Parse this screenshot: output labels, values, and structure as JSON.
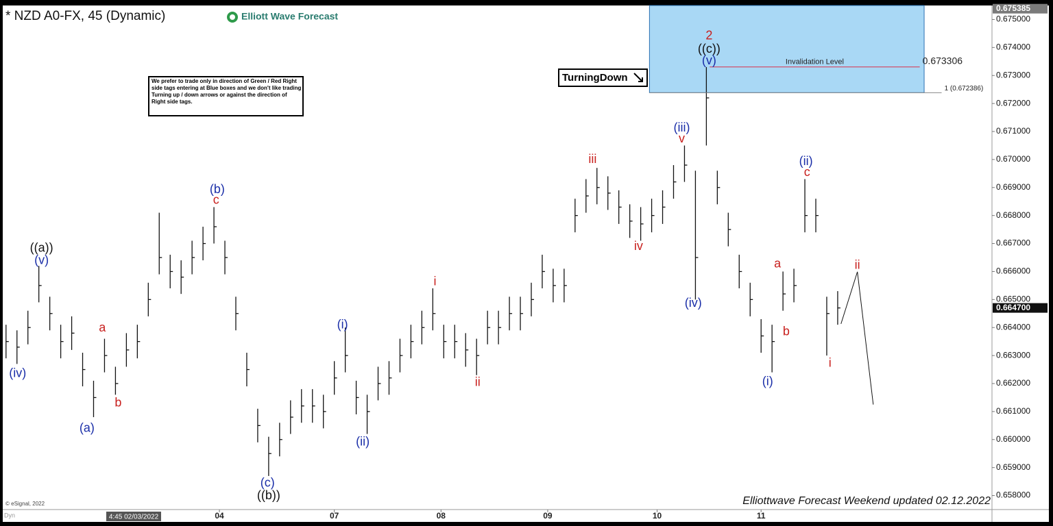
{
  "chart_data": {
    "type": "ohlc",
    "title": "* NZD A0-FX, 45 (Dynamic)",
    "logo": "Elliott Wave Forecast",
    "footer": "Elliottwave Forecast Weekend updated 02.12.2022",
    "copyright": "© eSignal, 2022",
    "corner_label": "Dyn",
    "cursor_label": "4:45 02/03/2022",
    "note": "We prefer to trade only in direction of Green / Red Right side tags entering at Blue boxes and we don't like trading Turning up / down arrows or against the direction of Right side tags.",
    "signal": "TurningDown",
    "color": "#111111",
    "xlim": [
      -0.3,
      90.1
    ],
    "ylim": [
      0.6575,
      0.6755
    ],
    "xticks": [
      {
        "value": 19.5,
        "label": "04"
      },
      {
        "value": 30,
        "label": "07"
      },
      {
        "value": 39.75,
        "label": "08"
      },
      {
        "value": 49.5,
        "label": "09"
      },
      {
        "value": 59.5,
        "label": "10"
      },
      {
        "value": 69,
        "label": "11"
      }
    ],
    "yticks": [
      {
        "value": 0.658,
        "label": "0.658000"
      },
      {
        "value": 0.659,
        "label": "0.659000"
      },
      {
        "value": 0.66,
        "label": "0.660000"
      },
      {
        "value": 0.661,
        "label": "0.661000"
      },
      {
        "value": 0.662,
        "label": "0.662000"
      },
      {
        "value": 0.663,
        "label": "0.663000"
      },
      {
        "value": 0.664,
        "label": "0.664000"
      },
      {
        "value": 0.665,
        "label": "0.665000"
      },
      {
        "value": 0.666,
        "label": "0.666000"
      },
      {
        "value": 0.667,
        "label": "0.667000"
      },
      {
        "value": 0.668,
        "label": "0.668000"
      },
      {
        "value": 0.669,
        "label": "0.669000"
      },
      {
        "value": 0.67,
        "label": "0.670000"
      },
      {
        "value": 0.671,
        "label": "0.671000"
      },
      {
        "value": 0.672,
        "label": "0.672000"
      },
      {
        "value": 0.673,
        "label": "0.673000"
      },
      {
        "value": 0.674,
        "label": "0.674000"
      },
      {
        "value": 0.675,
        "label": "0.675000"
      }
    ],
    "high": [
      0.6641,
      0.6639,
      0.6646,
      0.6662,
      0.6651,
      0.6641,
      0.6644,
      0.6631,
      0.6621,
      0.6636,
      0.6626,
      0.6638,
      0.6641,
      0.6656,
      0.6681,
      0.6666,
      0.6664,
      0.6671,
      0.6676,
      0.6683,
      0.6671,
      0.6651,
      0.6631,
      0.6611,
      0.6601,
      0.6606,
      0.6614,
      0.6618,
      0.6618,
      0.6616,
      0.6628,
      0.664,
      0.6621,
      0.6616,
      0.6626,
      0.6628,
      0.6636,
      0.6641,
      0.6646,
      0.6654,
      0.6641,
      0.6641,
      0.6638,
      0.6636,
      0.6646,
      0.6646,
      0.6651,
      0.6651,
      0.6656,
      0.6666,
      0.6661,
      0.6661,
      0.6686,
      0.6693,
      0.6697,
      0.6694,
      0.6689,
      0.6684,
      0.6683,
      0.6686,
      0.6689,
      0.6698,
      0.6705,
      0.6696,
      0.6733,
      0.6696,
      0.6681,
      0.6666,
      0.6656,
      0.6643,
      0.6641,
      0.666,
      0.6661,
      0.6693,
      0.6686,
      0.6651,
      0.6653
    ],
    "low": [
      0.6629,
      0.6627,
      0.6634,
      0.6649,
      0.6639,
      0.6629,
      0.6632,
      0.6619,
      0.6608,
      0.6624,
      0.6616,
      0.6626,
      0.6629,
      0.6644,
      0.6659,
      0.6654,
      0.6652,
      0.6659,
      0.6664,
      0.667,
      0.6659,
      0.6639,
      0.6619,
      0.6599,
      0.6587,
      0.6594,
      0.6602,
      0.6606,
      0.6606,
      0.6604,
      0.6616,
      0.6624,
      0.6609,
      0.6602,
      0.6614,
      0.6616,
      0.6624,
      0.6629,
      0.6634,
      0.6639,
      0.6629,
      0.6629,
      0.6626,
      0.6623,
      0.6634,
      0.6634,
      0.6639,
      0.6639,
      0.6644,
      0.6654,
      0.6649,
      0.6649,
      0.6674,
      0.6681,
      0.6684,
      0.6682,
      0.6677,
      0.6672,
      0.6671,
      0.6674,
      0.6677,
      0.6686,
      0.6692,
      0.665,
      0.6705,
      0.6684,
      0.6669,
      0.6654,
      0.6644,
      0.6631,
      0.6624,
      0.6646,
      0.6649,
      0.6674,
      0.6674,
      0.663,
      0.6641
    ],
    "close": [
      0.6635,
      0.6633,
      0.664,
      0.6655,
      0.6645,
      0.6635,
      0.6638,
      0.6625,
      0.6615,
      0.663,
      0.662,
      0.6632,
      0.6635,
      0.665,
      0.6665,
      0.666,
      0.6658,
      0.6665,
      0.667,
      0.6676,
      0.6665,
      0.6645,
      0.6625,
      0.6605,
      0.6595,
      0.66,
      0.6608,
      0.6612,
      0.6612,
      0.661,
      0.6622,
      0.663,
      0.6615,
      0.661,
      0.662,
      0.6622,
      0.663,
      0.6635,
      0.664,
      0.6645,
      0.6635,
      0.6635,
      0.6632,
      0.663,
      0.664,
      0.664,
      0.6645,
      0.6645,
      0.665,
      0.666,
      0.6655,
      0.6655,
      0.668,
      0.6687,
      0.669,
      0.6688,
      0.6683,
      0.6678,
      0.6677,
      0.668,
      0.6683,
      0.6692,
      0.6698,
      0.6665,
      0.6722,
      0.669,
      0.6675,
      0.666,
      0.665,
      0.6637,
      0.6635,
      0.6652,
      0.6655,
      0.668,
      0.668,
      0.6645,
      0.6647
    ],
    "blue_box": {
      "x": [
        58.8,
        83.9
      ],
      "y": [
        0.672386,
        0.6755
      ],
      "color": "#a9d8f5"
    },
    "levels": [
      {
        "name": "Invalidation Level",
        "value": 0.673306,
        "label": "0.673306",
        "color": "#d9314a",
        "x": [
          64.3,
          83.5
        ]
      },
      {
        "value": 0.672386,
        "label": "1 (0.672386)",
        "color": "#888888",
        "x": [
          58.8,
          85.5
        ]
      }
    ],
    "price_tags": [
      {
        "value": 0.675385,
        "label": "0.675385",
        "color": "#7a7a7a"
      },
      {
        "value": 0.6647,
        "label": "0.664700",
        "color": "#111111"
      }
    ],
    "projection": {
      "x": [
        76.3,
        77.8,
        79.25
      ],
      "y": [
        0.66413,
        0.66599,
        0.66125
      ],
      "color": "#111111"
    },
    "annotations": [
      {
        "text": "(iv)",
        "x": 1.06,
        "y": 0.66235,
        "color": "#1a2ea8"
      },
      {
        "text": "((a))",
        "x": 3.25,
        "y": 0.66682,
        "color": "#111111"
      },
      {
        "text": "(v)",
        "x": 3.25,
        "y": 0.66638,
        "color": "#1a2ea8"
      },
      {
        "text": "(a)",
        "x": 7.4,
        "y": 0.66039,
        "color": "#1a2ea8"
      },
      {
        "text": "a",
        "x": 8.8,
        "y": 0.66398,
        "color": "#c8201e"
      },
      {
        "text": "b",
        "x": 10.25,
        "y": 0.6613,
        "color": "#c8201e"
      },
      {
        "text": "(b)",
        "x": 19.3,
        "y": 0.66892,
        "color": "#1a2ea8"
      },
      {
        "text": "c",
        "x": 19.2,
        "y": 0.66853,
        "color": "#c8201e"
      },
      {
        "text": "(c)",
        "x": 23.9,
        "y": 0.65844,
        "color": "#1a2ea8"
      },
      {
        "text": "((b))",
        "x": 24.0,
        "y": 0.65798,
        "color": "#111111"
      },
      {
        "text": "(i)",
        "x": 30.75,
        "y": 0.66408,
        "color": "#1a2ea8"
      },
      {
        "text": "(ii)",
        "x": 32.6,
        "y": 0.6599,
        "color": "#1a2ea8"
      },
      {
        "text": "i",
        "x": 39.2,
        "y": 0.66562,
        "color": "#c8201e"
      },
      {
        "text": "ii",
        "x": 43.1,
        "y": 0.66203,
        "color": "#c8201e"
      },
      {
        "text": "iii",
        "x": 53.6,
        "y": 0.66999,
        "color": "#c8201e"
      },
      {
        "text": "iv",
        "x": 57.8,
        "y": 0.66689,
        "color": "#c8201e"
      },
      {
        "text": "(iii)",
        "x": 61.75,
        "y": 0.67112,
        "color": "#1a2ea8"
      },
      {
        "text": "v",
        "x": 61.75,
        "y": 0.67073,
        "color": "#c8201e"
      },
      {
        "text": "(iv)",
        "x": 62.8,
        "y": 0.66486,
        "color": "#1a2ea8"
      },
      {
        "text": "2",
        "x": 64.25,
        "y": 0.67441,
        "color": "#c8201e"
      },
      {
        "text": "((c))",
        "x": 64.25,
        "y": 0.67393,
        "color": "#111111"
      },
      {
        "text": "(v)",
        "x": 64.25,
        "y": 0.67351,
        "color": "#1a2ea8"
      },
      {
        "text": "(i)",
        "x": 69.6,
        "y": 0.66205,
        "color": "#1a2ea8"
      },
      {
        "text": "a",
        "x": 70.5,
        "y": 0.66626,
        "color": "#c8201e"
      },
      {
        "text": "b",
        "x": 71.3,
        "y": 0.66384,
        "color": "#c8201e"
      },
      {
        "text": "(ii)",
        "x": 73.1,
        "y": 0.66992,
        "color": "#1a2ea8"
      },
      {
        "text": "c",
        "x": 73.2,
        "y": 0.66953,
        "color": "#c8201e"
      },
      {
        "text": "i",
        "x": 75.3,
        "y": 0.66271,
        "color": "#c8201e"
      },
      {
        "text": "ii",
        "x": 77.8,
        "y": 0.66621,
        "color": "#c8201e"
      }
    ]
  }
}
